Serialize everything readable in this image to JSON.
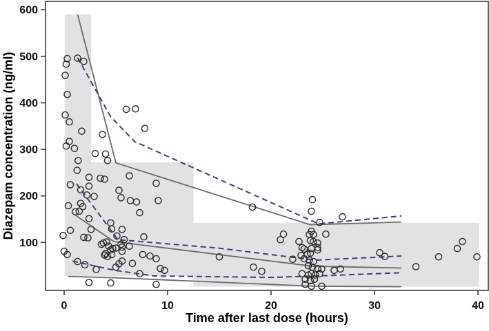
{
  "chart_data": {
    "type": "scatter",
    "title": "",
    "xlabel": "Time after last dose (hours)",
    "ylabel": "Diazepam concentration (ng/ml)",
    "xlim": [
      -1.8,
      41
    ],
    "ylim": [
      -3,
      618
    ],
    "x_ticks": [
      0,
      10,
      20,
      30,
      40
    ],
    "y_ticks": [
      100,
      200,
      300,
      400,
      500,
      600
    ],
    "grid": false,
    "legend_position": "none",
    "colors": {
      "band_fill": "#e2e2e2",
      "solid_line": "#6a6a6a",
      "dashed_line": "#3c3c8c",
      "marker_stroke": "#2b2b2b",
      "axis": "#3a3a3a"
    },
    "bands": [
      {
        "name": "interval-0-2.6h",
        "x": [
          0.05,
          2.6
        ],
        "y": [
          28,
          590
        ]
      },
      {
        "name": "interval-2.6-12.5h",
        "x": [
          2.6,
          12.5
        ],
        "y": [
          28,
          272
        ]
      },
      {
        "name": "interval-12.5-40h",
        "x": [
          12.5,
          40.1
        ],
        "y": [
          5,
          142
        ]
      }
    ],
    "series": [
      {
        "name": "observed-upper-percentile",
        "style": "solid",
        "points": [
          [
            1.3,
            590
          ],
          [
            5.0,
            271
          ],
          [
            23.8,
            138
          ],
          [
            32.6,
            144
          ]
        ]
      },
      {
        "name": "observed-median",
        "style": "solid",
        "points": [
          [
            1.0,
            160
          ],
          [
            4.8,
            102
          ],
          [
            24.0,
            49
          ],
          [
            32.6,
            45
          ]
        ]
      },
      {
        "name": "observed-lower-percentile",
        "style": "solid",
        "points": [
          [
            0.4,
            27
          ],
          [
            5.0,
            24
          ],
          [
            24.0,
            6
          ],
          [
            32.6,
            5
          ]
        ]
      },
      {
        "name": "predicted-upper-percentile",
        "style": "dashed",
        "points": [
          [
            1.3,
            497
          ],
          [
            4.5,
            370
          ],
          [
            6.8,
            317
          ],
          [
            24.6,
            140
          ],
          [
            32.6,
            157
          ]
        ]
      },
      {
        "name": "predicted-median",
        "style": "dashed",
        "points": [
          [
            1.2,
            226
          ],
          [
            5.2,
            106
          ],
          [
            14.9,
            88
          ],
          [
            24.3,
            62
          ],
          [
            32.6,
            71
          ]
        ]
      },
      {
        "name": "predicted-lower-percentile",
        "style": "dashed",
        "points": [
          [
            0.8,
            60
          ],
          [
            4.9,
            40
          ],
          [
            8.7,
            28
          ],
          [
            20.0,
            25
          ],
          [
            24.5,
            28
          ],
          [
            32.6,
            35
          ]
        ]
      }
    ],
    "scatter": [
      [
        0.3,
        495
      ],
      [
        1.3,
        496
      ],
      [
        0.2,
        483
      ],
      [
        1.9,
        489
      ],
      [
        0.1,
        459
      ],
      [
        0.3,
        418
      ],
      [
        0.1,
        374
      ],
      [
        0.5,
        359
      ],
      [
        1.7,
        339
      ],
      [
        0.5,
        317
      ],
      [
        0.2,
        307
      ],
      [
        1.0,
        302
      ],
      [
        1.35,
        276
      ],
      [
        1.25,
        255
      ],
      [
        2.4,
        240
      ],
      [
        3.5,
        238
      ],
      [
        3.9,
        236
      ],
      [
        0.6,
        224
      ],
      [
        2.4,
        221
      ],
      [
        1.6,
        213
      ],
      [
        2.2,
        202
      ],
      [
        2.9,
        199
      ],
      [
        0.4,
        179
      ],
      [
        1.6,
        184
      ],
      [
        1.8,
        177
      ],
      [
        1.1,
        166
      ],
      [
        1.45,
        167
      ],
      [
        2.4,
        151
      ],
      [
        0.6,
        126
      ],
      [
        -0.1,
        115
      ],
      [
        1.9,
        111
      ],
      [
        2.3,
        110
      ],
      [
        0.0,
        81
      ],
      [
        0.3,
        74
      ],
      [
        1.3,
        59
      ],
      [
        2.0,
        52
      ],
      [
        3.1,
        42
      ],
      [
        2.4,
        14
      ],
      [
        4.5,
        13
      ],
      [
        8.9,
        10
      ],
      [
        3.7,
        332
      ],
      [
        6.0,
        386
      ],
      [
        6.9,
        387
      ],
      [
        7.8,
        345
      ],
      [
        3.0,
        291
      ],
      [
        4.0,
        290
      ],
      [
        4.2,
        276
      ],
      [
        6.3,
        243
      ],
      [
        5.3,
        212
      ],
      [
        5.5,
        196
      ],
      [
        6.4,
        190
      ],
      [
        7.0,
        187
      ],
      [
        9.1,
        190
      ],
      [
        8.9,
        227
      ],
      [
        7.3,
        164
      ],
      [
        4.5,
        142
      ],
      [
        2.6,
        128
      ],
      [
        4.6,
        129
      ],
      [
        5.6,
        128
      ],
      [
        5.1,
        114
      ],
      [
        5.8,
        106
      ],
      [
        7.7,
        112
      ],
      [
        3.6,
        96
      ],
      [
        3.8,
        99
      ],
      [
        4.1,
        101
      ],
      [
        4.3,
        92
      ],
      [
        4.7,
        87
      ],
      [
        5.0,
        88
      ],
      [
        5.5,
        96
      ],
      [
        5.6,
        90
      ],
      [
        4.0,
        76
      ],
      [
        4.6,
        74
      ],
      [
        3.9,
        73
      ],
      [
        4.2,
        70
      ],
      [
        5.6,
        81
      ],
      [
        5.3,
        54
      ],
      [
        5.0,
        47
      ],
      [
        4.5,
        84
      ],
      [
        5.6,
        60
      ],
      [
        6.3,
        92
      ],
      [
        6.6,
        55
      ],
      [
        7.6,
        74
      ],
      [
        8.3,
        71
      ],
      [
        8.9,
        65
      ],
      [
        9.3,
        44
      ],
      [
        9.7,
        40
      ],
      [
        7.3,
        33
      ],
      [
        15.0,
        69
      ],
      [
        18.3,
        47
      ],
      [
        19.1,
        38
      ],
      [
        18.2,
        176
      ],
      [
        21.2,
        118
      ],
      [
        20.9,
        106
      ],
      [
        22.1,
        64
      ],
      [
        24.0,
        192
      ],
      [
        23.9,
        167
      ],
      [
        26.9,
        155
      ],
      [
        24.7,
        143
      ],
      [
        23.9,
        124
      ],
      [
        23.7,
        117
      ],
      [
        24.1,
        117
      ],
      [
        25.3,
        118
      ],
      [
        22.7,
        102
      ],
      [
        23.8,
        104
      ],
      [
        24.1,
        102
      ],
      [
        24.5,
        99
      ],
      [
        23.0,
        89
      ],
      [
        23.9,
        87
      ],
      [
        24.5,
        89
      ],
      [
        22.9,
        72
      ],
      [
        23.5,
        74
      ],
      [
        23.8,
        77
      ],
      [
        23.2,
        86
      ],
      [
        24.5,
        84
      ],
      [
        23.2,
        65
      ],
      [
        23.7,
        62
      ],
      [
        24.1,
        59
      ],
      [
        23.6,
        50
      ],
      [
        24.0,
        47
      ],
      [
        24.5,
        44
      ],
      [
        24.9,
        43
      ],
      [
        26.1,
        40
      ],
      [
        26.7,
        43
      ],
      [
        23.0,
        33
      ],
      [
        23.6,
        30
      ],
      [
        23.9,
        33
      ],
      [
        24.3,
        30
      ],
      [
        24.7,
        33
      ],
      [
        23.3,
        21
      ],
      [
        23.8,
        18
      ],
      [
        24.2,
        21
      ],
      [
        23.9,
        6
      ],
      [
        24.9,
        6
      ],
      [
        23.3,
        10
      ],
      [
        30.5,
        78
      ],
      [
        31.0,
        70
      ],
      [
        34.0,
        48
      ],
      [
        36.2,
        69
      ],
      [
        38.0,
        87
      ],
      [
        38.5,
        102
      ],
      [
        39.9,
        69
      ]
    ]
  }
}
